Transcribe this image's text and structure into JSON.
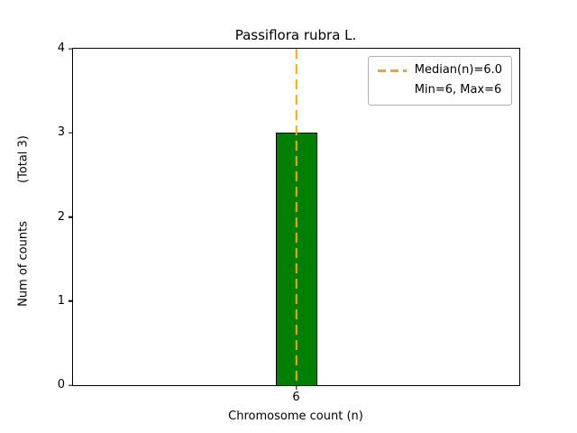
{
  "chart_data": {
    "type": "bar",
    "title": "Passiflora rubra L.",
    "xlabel": "Chromosome count (n)",
    "ylabel": "Num of counts",
    "ylabel_secondary": "(Total 3)",
    "categories": [
      "6"
    ],
    "values": [
      3
    ],
    "ylim": [
      0,
      4
    ],
    "yticks": [
      0,
      1,
      2,
      3,
      4
    ],
    "grid": "off",
    "bar_color": "#008000",
    "bar_edge_color": "#000000",
    "median": {
      "category": "6",
      "color": "#ffa500",
      "style": "dashed"
    },
    "legend": [
      {
        "label": "Median(n)=6.0",
        "marker": "dashed-line"
      },
      {
        "label": "Min=6, Max=6",
        "marker": "none"
      }
    ],
    "legend_position": "upper right"
  }
}
